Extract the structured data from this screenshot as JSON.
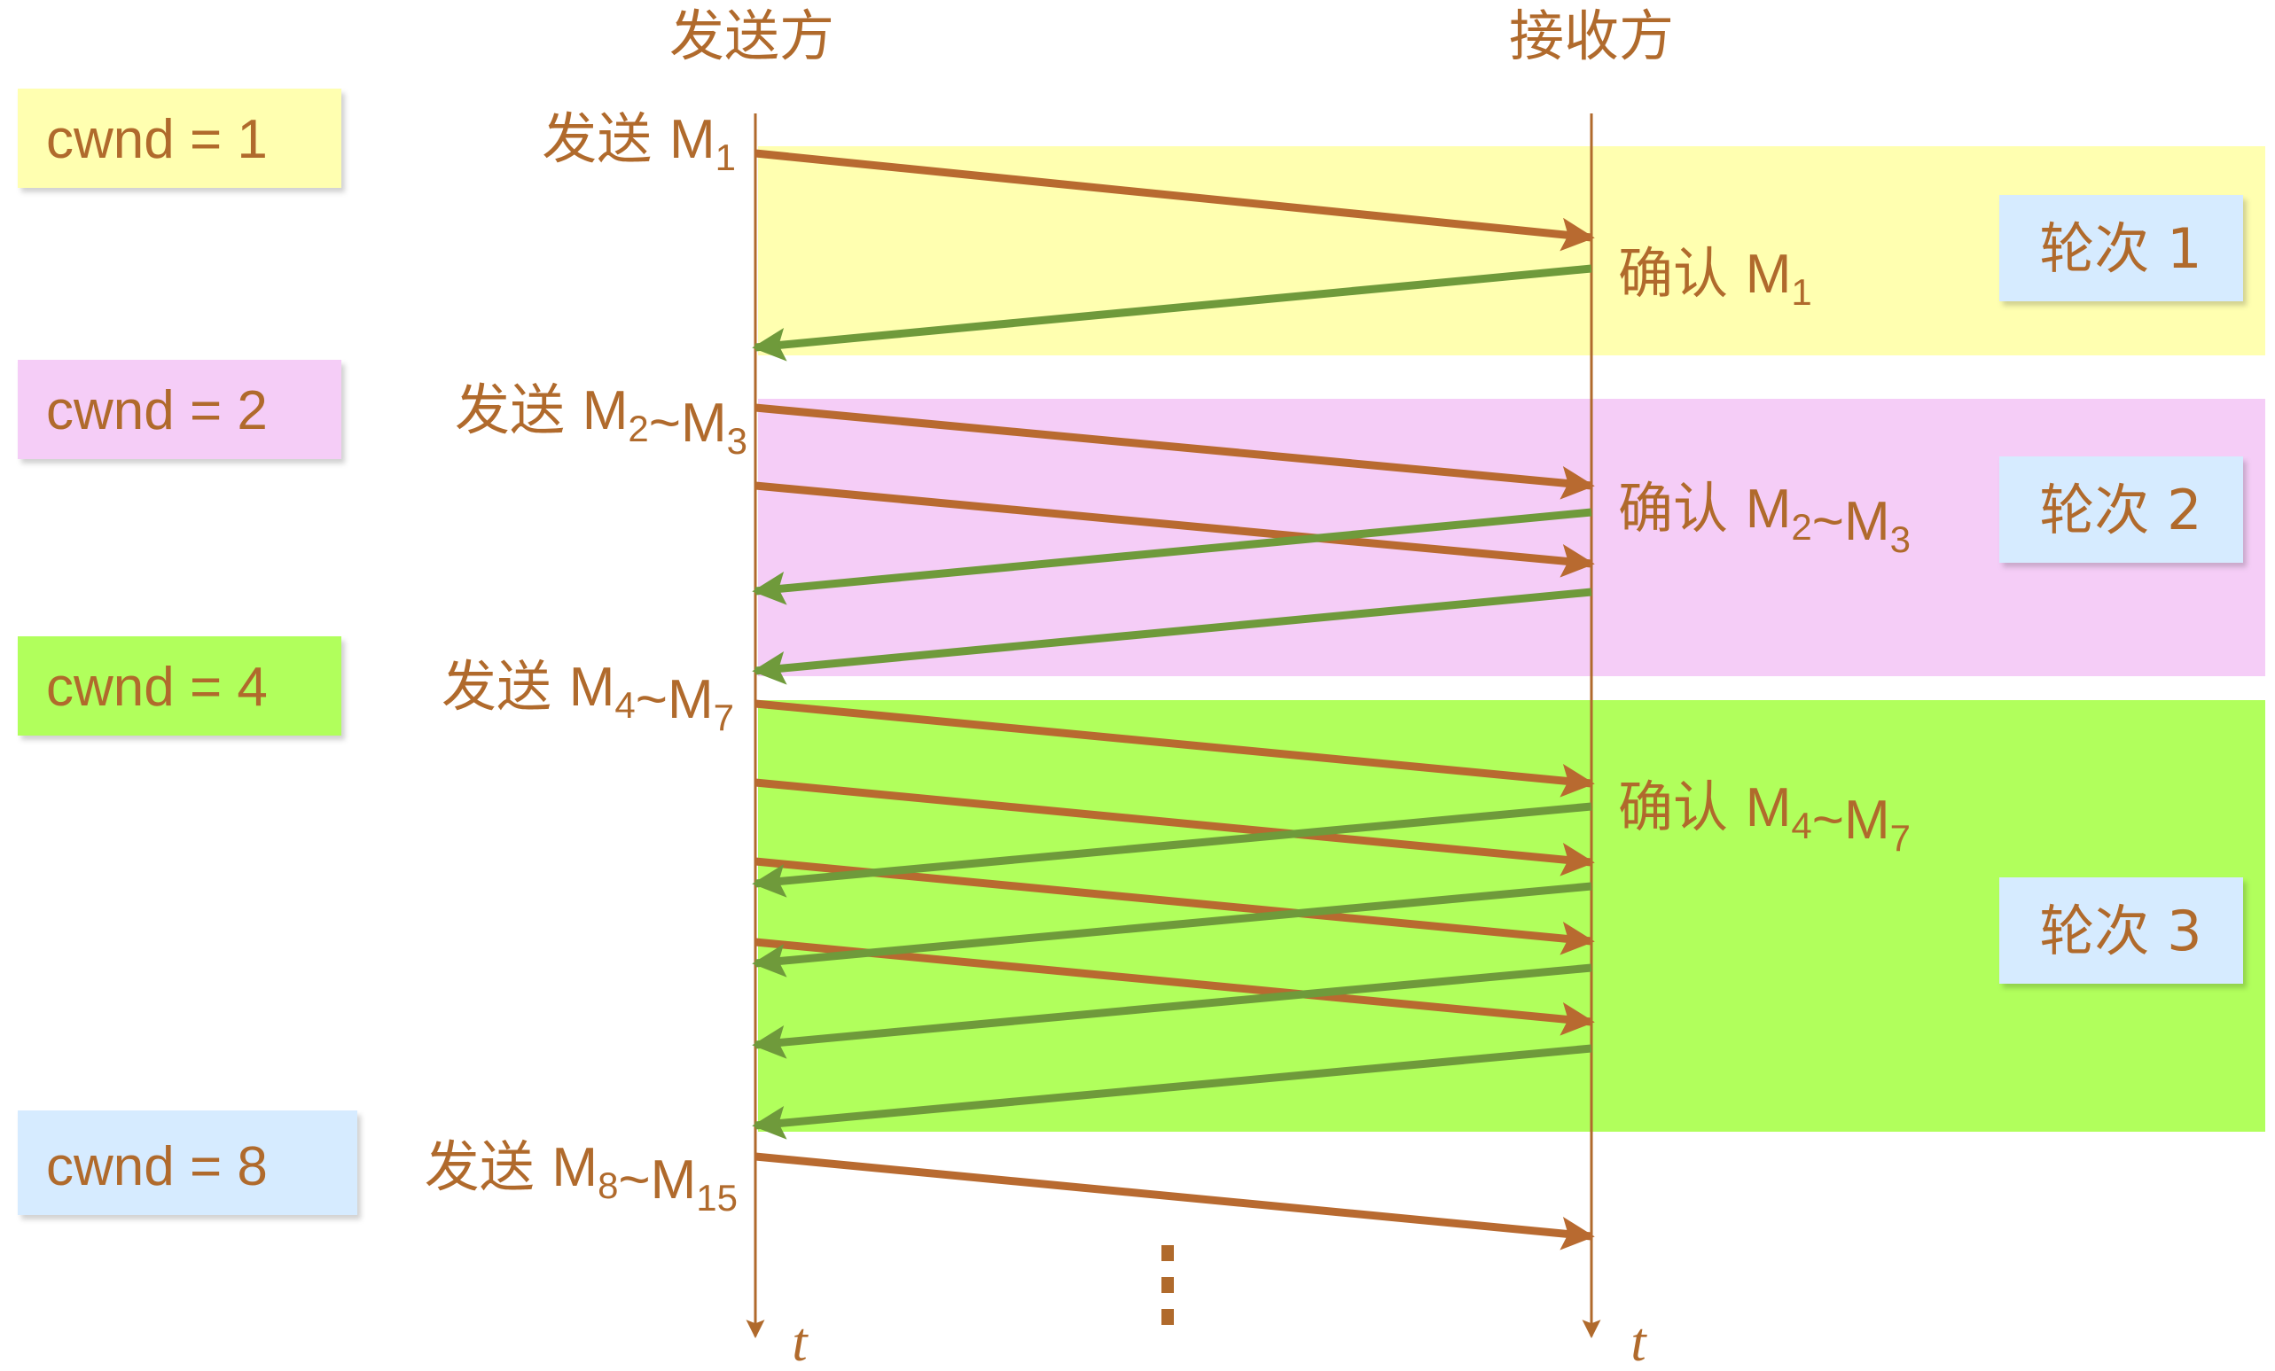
{
  "header": {
    "sender": "发送方",
    "receiver": "接收方"
  },
  "colors": {
    "text": "#b06a2c",
    "send_arrow": "#b86a30",
    "ack_arrow": "#6f9a3b",
    "timeline": "#b06a2c",
    "round1_band": "#ffffb0",
    "round2_band": "#f5cdf7",
    "round3_band": "#b1ff5c",
    "round_tag": "#d6ebff"
  },
  "cwnd_labels": [
    {
      "text": "cwnd = 1"
    },
    {
      "text": "cwnd = 2"
    },
    {
      "text": "cwnd = 4"
    },
    {
      "text": "cwnd = 8"
    }
  ],
  "send_labels": [
    {
      "verb": "发送",
      "parts": [
        [
          "M",
          "1"
        ]
      ]
    },
    {
      "verb": "发送",
      "parts": [
        [
          "M",
          "2"
        ],
        [
          "~M",
          "3"
        ]
      ]
    },
    {
      "verb": "发送",
      "parts": [
        [
          "M",
          "4"
        ],
        [
          "~M",
          "7"
        ]
      ]
    },
    {
      "verb": "发送",
      "parts": [
        [
          "M",
          "8"
        ],
        [
          "~M",
          "15"
        ]
      ]
    }
  ],
  "ack_labels": [
    {
      "verb": "确认",
      "parts": [
        [
          "M",
          "1"
        ]
      ]
    },
    {
      "verb": "确认",
      "parts": [
        [
          "M",
          "2"
        ],
        [
          "~M",
          "3"
        ]
      ]
    },
    {
      "verb": "确认",
      "parts": [
        [
          "M",
          "4"
        ],
        [
          "~M",
          "7"
        ]
      ]
    }
  ],
  "round_labels": [
    {
      "text": "轮次 1"
    },
    {
      "text": "轮次 2"
    },
    {
      "text": "轮次 3"
    }
  ],
  "time_axis_label": "t",
  "ellipsis": "⋮"
}
